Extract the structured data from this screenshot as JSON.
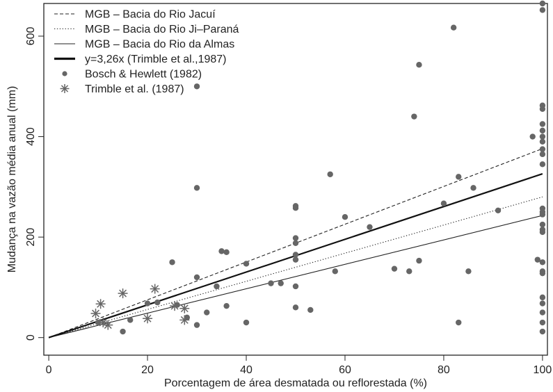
{
  "chart_data": {
    "type": "scatter",
    "title": "",
    "xlabel": "Porcentagem de área desmatada ou reflorestada (%)",
    "ylabel": "Mudança na vazão média anual (mm)",
    "xlim": [
      -1,
      101
    ],
    "ylim": [
      -35,
      665
    ],
    "xticks": [
      0,
      20,
      40,
      60,
      80,
      100
    ],
    "yticks": [
      0,
      200,
      400,
      600
    ],
    "grid": false,
    "legend_position": "top-left",
    "lines": [
      {
        "name": "MGB – Bacia do Rio Jacuí",
        "style": "dashed",
        "x": [
          0,
          100
        ],
        "y": [
          0,
          376
        ]
      },
      {
        "name": "MGB – Bacia do Rio Ji–Paraná",
        "style": "dotted",
        "x": [
          0,
          100
        ],
        "y": [
          0,
          280
        ]
      },
      {
        "name": "MGB – Bacia do Rio da Almas",
        "style": "solid",
        "x": [
          0,
          100
        ],
        "y": [
          0,
          243
        ]
      },
      {
        "name": "y=3,26x (Trimble et al.,1987)",
        "style": "bold",
        "x": [
          0,
          100
        ],
        "y": [
          0,
          326
        ]
      }
    ],
    "series": [
      {
        "name": "Bosch & Hewlett (1982)",
        "marker": "dot",
        "points": [
          [
            10,
            30
          ],
          [
            15,
            12
          ],
          [
            16.5,
            35
          ],
          [
            20,
            68
          ],
          [
            22,
            70
          ],
          [
            25,
            150
          ],
          [
            26,
            65
          ],
          [
            28,
            40
          ],
          [
            30,
            500
          ],
          [
            30,
            298
          ],
          [
            30,
            120
          ],
          [
            30,
            25
          ],
          [
            32,
            50
          ],
          [
            34,
            102
          ],
          [
            35,
            172
          ],
          [
            36,
            170
          ],
          [
            36,
            63
          ],
          [
            40,
            147
          ],
          [
            40,
            30
          ],
          [
            45,
            108
          ],
          [
            47,
            108
          ],
          [
            50,
            262
          ],
          [
            50,
            258
          ],
          [
            50,
            198
          ],
          [
            50,
            188
          ],
          [
            50,
            165
          ],
          [
            50,
            155
          ],
          [
            50,
            102
          ],
          [
            50,
            60
          ],
          [
            53,
            55
          ],
          [
            57,
            325
          ],
          [
            58,
            132
          ],
          [
            60,
            240
          ],
          [
            65,
            220
          ],
          [
            70,
            137
          ],
          [
            73,
            132
          ],
          [
            74,
            440
          ],
          [
            75,
            543
          ],
          [
            75,
            153
          ],
          [
            80,
            267
          ],
          [
            82,
            617
          ],
          [
            83,
            320
          ],
          [
            83,
            30
          ],
          [
            85,
            132
          ],
          [
            86,
            298
          ],
          [
            91,
            253
          ],
          [
            98,
            400
          ],
          [
            99,
            155
          ],
          [
            100,
            665
          ],
          [
            100,
            652
          ],
          [
            100,
            462
          ],
          [
            100,
            455
          ],
          [
            100,
            425
          ],
          [
            100,
            412
          ],
          [
            100,
            400
          ],
          [
            100,
            390
          ],
          [
            100,
            375
          ],
          [
            100,
            365
          ],
          [
            100,
            345
          ],
          [
            100,
            257
          ],
          [
            100,
            250
          ],
          [
            100,
            245
          ],
          [
            100,
            225
          ],
          [
            100,
            215
          ],
          [
            100,
            210
          ],
          [
            100,
            150
          ],
          [
            100,
            132
          ],
          [
            100,
            128
          ],
          [
            100,
            80
          ],
          [
            100,
            68
          ],
          [
            100,
            50
          ],
          [
            100,
            30
          ],
          [
            100,
            12
          ]
        ]
      },
      {
        "name": "Trimble et al. (1987)",
        "marker": "asterisk",
        "points": [
          [
            9.5,
            48
          ],
          [
            10.5,
            67
          ],
          [
            11,
            30
          ],
          [
            12,
            25
          ],
          [
            15,
            88
          ],
          [
            20,
            38
          ],
          [
            21.5,
            97
          ],
          [
            25.5,
            63
          ],
          [
            27.5,
            58
          ],
          [
            27.5,
            35
          ]
        ]
      }
    ]
  }
}
